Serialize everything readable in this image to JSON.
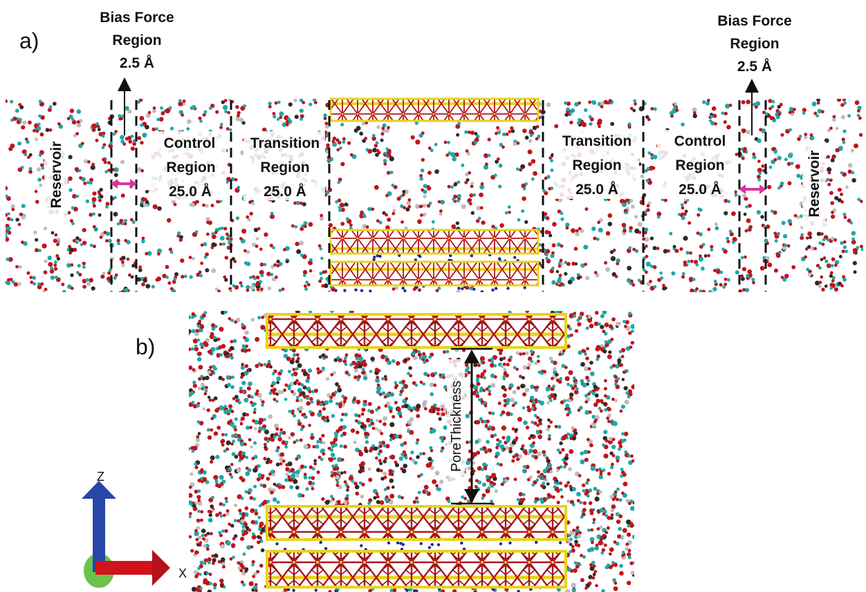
{
  "panel_a": {
    "label": "a)",
    "bias_left": {
      "line1": "Bias Force",
      "line2": "Region",
      "line3": "2.5 Å"
    },
    "bias_right": {
      "line1": "Bias Force",
      "line2": "Region",
      "line3": "2.5 Å"
    },
    "reservoir_left": "Reservoir",
    "reservoir_right": "Reservoir",
    "control_left": {
      "line1": "Control",
      "line2": "Region",
      "line3": "25.0 Å"
    },
    "transition_left": {
      "line1": "Transition",
      "line2": "Region",
      "line3": "25.0 Å"
    },
    "transition_right": {
      "line1": "Transition",
      "line2": "Region",
      "line3": "25.0 Å"
    },
    "control_right": {
      "line1": "Control",
      "line2": "Region",
      "line3": "25.0 Å"
    }
  },
  "panel_b": {
    "label": "b)",
    "pore_label": "PoreThickness"
  },
  "axes": {
    "z_label": "Z",
    "x_label": "X"
  },
  "colors": {
    "oxygen": "#c0141c",
    "carbon": "#1fa7a7",
    "dark_atom": "#2b2b2b",
    "silicon": "#e5d21a",
    "sodium": "#1b2aa0",
    "double_arrow": "#d6379a",
    "z_axis": "#2646a8",
    "x_axis": "#d0141a",
    "origin": "#6cc24a"
  }
}
